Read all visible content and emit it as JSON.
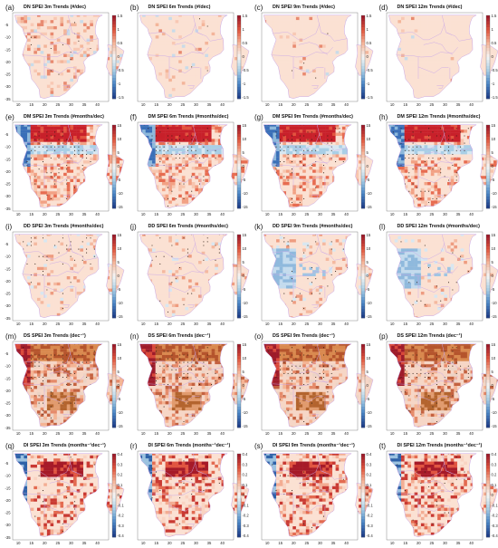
{
  "colors": {
    "land": "#fbe3d8",
    "border": "#c9a7e6",
    "stipple": "#2a1a10",
    "bar": [
      "#1f3f8a",
      "#4a86c6",
      "#a9cfe6",
      "#f7f7f7",
      "#f6b79c",
      "#e0563e",
      "#9e1b2a"
    ],
    "bar_rev": [
      "#9e1b2a",
      "#e0563e",
      "#f6b79c",
      "#f7f7f7",
      "#a9cfe6",
      "#4a86c6",
      "#1f3f8a"
    ]
  },
  "axes": {
    "x_ticks": [
      "10",
      "15",
      "20",
      "25",
      "30",
      "35",
      "40"
    ],
    "y_ticks": [
      "-5",
      "-10",
      "-15",
      "-20",
      "-25",
      "-30",
      "-35"
    ]
  },
  "panels": [
    {
      "label": "(a)",
      "title": "DN SPEI 3m Trends (#/dec)",
      "cbar": [
        "1.5",
        "1",
        "0.5",
        "0",
        "-0.5",
        "-1",
        "-1.5"
      ],
      "style": "dn",
      "level": 0.6
    },
    {
      "label": "(b)",
      "title": "DN SPEI 6m Trends (#/dec)",
      "cbar": [
        "1.5",
        "1",
        "0.5",
        "0",
        "-0.5",
        "-1",
        "-1.5"
      ],
      "style": "dn",
      "level": 0.2
    },
    {
      "label": "(c)",
      "title": "DN SPEI 9m Trends (#/dec)",
      "cbar": [
        "1.5",
        "1",
        "0.5",
        "0",
        "-0.5",
        "-1",
        "-1.5"
      ],
      "style": "dn",
      "level": 0.1
    },
    {
      "label": "(d)",
      "title": "DN SPEI 12m Trends (#/dec)",
      "cbar": [
        "1.5",
        "1",
        "0.5",
        "0",
        "-0.5",
        "-1",
        "-1.5"
      ],
      "style": "dn",
      "level": 0.05
    },
    {
      "label": "(e)",
      "title": "DM SPEI 3m Trends (#months/dec)",
      "cbar": [
        "15",
        "10",
        "5",
        "0",
        "-5",
        "-10",
        "-15"
      ],
      "style": "dm",
      "level": 1.0
    },
    {
      "label": "(f)",
      "title": "DM SPEI 6m Trends (#months/dec)",
      "cbar": [
        "15",
        "10",
        "5",
        "0",
        "-5",
        "-10",
        "-15"
      ],
      "style": "dm",
      "level": 0.9
    },
    {
      "label": "(g)",
      "title": "DM SPEI 9m Trends (#months/dec)",
      "cbar": [
        "15",
        "10",
        "5",
        "0",
        "-5",
        "-10",
        "-15"
      ],
      "style": "dm",
      "level": 0.85
    },
    {
      "label": "(h)",
      "title": "DM SPEI 12m Trends (#months/dec)",
      "cbar": [
        "15",
        "10",
        "5",
        "0",
        "-5",
        "-10",
        "-15"
      ],
      "style": "dm",
      "level": 0.8
    },
    {
      "label": "(i)",
      "title": "DD SPEI 3m Trends (#months/dec)",
      "cbar": [
        "15",
        "10",
        "5",
        "0",
        "-5",
        "-10",
        "-15"
      ],
      "style": "dd",
      "level": 0.4
    },
    {
      "label": "(j)",
      "title": "DD SPEI 6m Trends (#months/dec)",
      "cbar": [
        "15",
        "10",
        "5",
        "0",
        "-5",
        "-10",
        "-15"
      ],
      "style": "dd",
      "level": 0.3
    },
    {
      "label": "(k)",
      "title": "DD SPEI 9m Trends (#months/dec)",
      "cbar": [
        "15",
        "10",
        "5",
        "0",
        "-5",
        "-10",
        "-15"
      ],
      "style": "ddb",
      "level": 0.5
    },
    {
      "label": "(l)",
      "title": "DD SPEI 12m Trends (#months/dec)",
      "cbar": [
        "15",
        "10",
        "5",
        "0",
        "-5",
        "-10",
        "-15"
      ],
      "style": "ddb",
      "level": 0.4
    },
    {
      "label": "(m)",
      "title": "DS SPEI 3m Trends (dec⁻¹)",
      "cbar": [
        "15",
        "10",
        "5",
        "0",
        "-5",
        "-10",
        "-15"
      ],
      "style": "ds",
      "level": 1.0
    },
    {
      "label": "(n)",
      "title": "DS SPEI 6m Trends (dec⁻¹)",
      "cbar": [
        "15",
        "10",
        "5",
        "0",
        "-5",
        "-10",
        "-15"
      ],
      "style": "ds",
      "level": 0.8
    },
    {
      "label": "(o)",
      "title": "DS SPEI 9m Trends (dec⁻¹)",
      "cbar": [
        "15",
        "10",
        "5",
        "0",
        "-5",
        "-10",
        "-15"
      ],
      "style": "ds",
      "level": 0.7
    },
    {
      "label": "(p)",
      "title": "DS SPEI 12m Trends (dec⁻¹)",
      "cbar": [
        "15",
        "10",
        "5",
        "0",
        "-5",
        "-10",
        "-15"
      ],
      "style": "ds",
      "level": 0.75
    },
    {
      "label": "(q)",
      "title": "DI SPEI 3m Trends (months⁻¹dec⁻¹)",
      "cbar": [
        "0.4",
        "0.3",
        "0.2",
        "0.1",
        "0",
        "-0.1",
        "-0.2",
        "-0.3",
        "-0.4"
      ],
      "style": "di",
      "level": 0.6
    },
    {
      "label": "(r)",
      "title": "DI SPEI 6m Trends (months⁻¹dec⁻¹)",
      "cbar": [
        "0.4",
        "0.3",
        "0.2",
        "0.1",
        "0",
        "-0.1",
        "-0.2",
        "-0.3",
        "-0.4"
      ],
      "style": "di",
      "level": 0.8
    },
    {
      "label": "(s)",
      "title": "DI SPEI 9m Trends (months⁻¹dec⁻¹)",
      "cbar": [
        "0.4",
        "0.3",
        "0.2",
        "0.1",
        "0",
        "-0.1",
        "-0.2",
        "-0.3",
        "-0.4"
      ],
      "style": "di",
      "level": 0.85
    },
    {
      "label": "(t)",
      "title": "DI SPEI 12m Trends (months⁻¹dec⁻¹)",
      "cbar": [
        "0.4",
        "0.3",
        "0.2",
        "0.1",
        "0",
        "-0.1",
        "-0.2",
        "-0.3",
        "-0.4"
      ],
      "style": "di",
      "level": 0.8
    }
  ]
}
